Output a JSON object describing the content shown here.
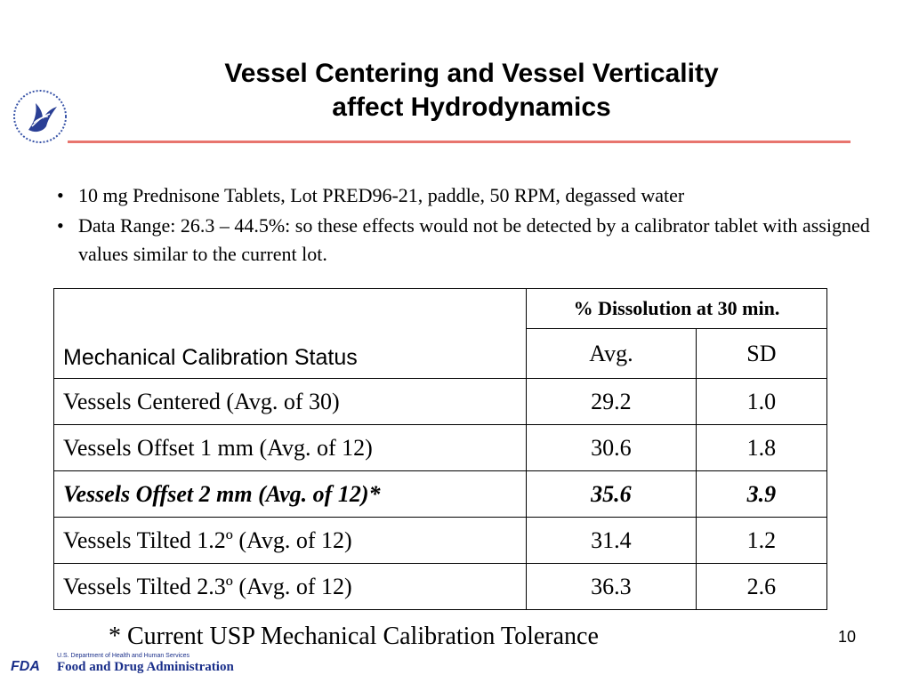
{
  "slide": {
    "title_line1": "Vessel Centering and Vessel Verticality",
    "title_line2": "affect Hydrodynamics",
    "bullets": [
      "10 mg Prednisone Tablets, Lot PRED96-21, paddle, 50 RPM, degassed water",
      "Data Range: 26.3 – 44.5%: so these effects would not be detected by a calibrator tablet with assigned values similar to the current lot."
    ],
    "footnote": "* Current USP Mechanical Calibration Tolerance",
    "page_number": "10"
  },
  "table": {
    "status_header": "Mechanical Calibration Status",
    "group_header": "% Dissolution at 30 min.",
    "col_avg": "Avg.",
    "col_sd": "SD",
    "rows": [
      {
        "status": "Vessels Centered (Avg. of 30)",
        "avg": "29.2",
        "sd": "1.0"
      },
      {
        "status": "Vessels Offset 1 mm (Avg. of 12)",
        "avg": "30.6",
        "sd": "1.8"
      },
      {
        "status": "Vessels Offset 2 mm (Avg. of 12)*",
        "avg": "35.6",
        "sd": "3.9"
      },
      {
        "status": "Vessels Tilted 1.2º (Avg. of 12)",
        "avg": "31.4",
        "sd": "1.2"
      },
      {
        "status": "Vessels Tilted 2.3º (Avg. of 12)",
        "avg": "36.3",
        "sd": "2.6"
      }
    ]
  },
  "footer": {
    "department": "U.S. Department of Health and Human Services",
    "agency": "Food and Drug Administration",
    "logo_text": "FDA"
  },
  "colors": {
    "title_rule": "#e8756e",
    "logo_blue": "#1a2f8a"
  },
  "icons": {
    "hhs_logo": "hhs-eagle-logo-icon",
    "fda_logo": "fda-logo-icon"
  }
}
